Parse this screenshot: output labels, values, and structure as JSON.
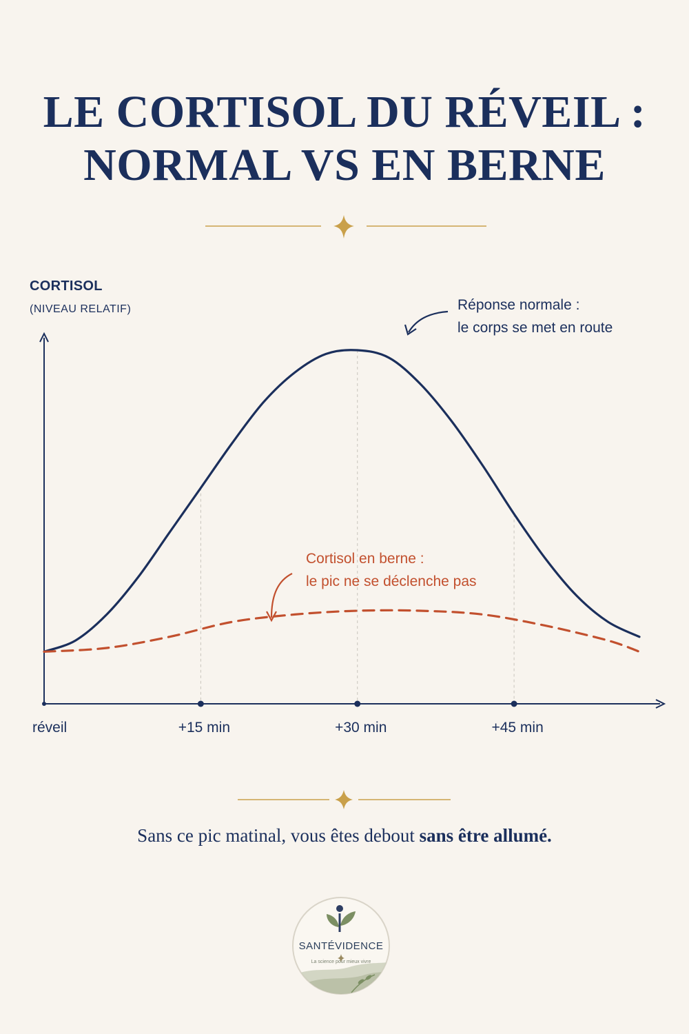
{
  "title": {
    "line1": "LE CORTISOL DU RÉVEIL :",
    "line2": "NORMAL VS EN BERNE"
  },
  "annotations": {
    "normal_line1": "Réponse normale :",
    "normal_line2": "le corps se met en route",
    "low_line1": "Cortisol en berne :",
    "low_line2": "le pic ne se déclenche pas"
  },
  "conclusion": {
    "prefix": "Sans ce pic matinal, vous êtes debout ",
    "emphasis": "sans être allumé."
  },
  "logo": {
    "name": "SANTÉVIDENCE",
    "tagline": "La science pour mieux vivre"
  },
  "colors": {
    "navy": "#1b2f5c",
    "rust": "#c2502e",
    "gold": "#c9a04a",
    "background": "#f8f4ee"
  },
  "chart_data": {
    "type": "line",
    "ylabel": "CORTISOL",
    "ylabel_sub": "(NIVEAU RELATIF)",
    "x_ticks": [
      {
        "label": "réveil",
        "minutes": 0
      },
      {
        "label": "+15 min",
        "minutes": 15
      },
      {
        "label": "+30 min",
        "minutes": 30
      },
      {
        "label": "+45 min",
        "minutes": 45
      }
    ],
    "xlim": [
      0,
      57
    ],
    "ylim": [
      0,
      100
    ],
    "grid": "vertical dashed at +15, +30, +45 min",
    "series": [
      {
        "name": "Réponse normale",
        "style": "solid",
        "color": "#1b2f5c",
        "x": [
          0,
          3,
          6,
          9,
          12,
          15,
          18,
          21,
          24,
          27,
          30,
          33,
          36,
          39,
          42,
          45,
          48,
          51,
          54,
          57
        ],
        "y": [
          14,
          17,
          24,
          34,
          46,
          58,
          70,
          81,
          89,
          94,
          95,
          93,
          86,
          76,
          64,
          51,
          39,
          29,
          22,
          18
        ]
      },
      {
        "name": "Cortisol en berne",
        "style": "dashed",
        "color": "#c2502e",
        "x": [
          0,
          6,
          12,
          18,
          24,
          30,
          36,
          42,
          48,
          54,
          57
        ],
        "y": [
          14,
          15,
          18,
          22,
          24,
          25,
          25,
          24,
          21,
          17,
          14
        ]
      }
    ]
  }
}
